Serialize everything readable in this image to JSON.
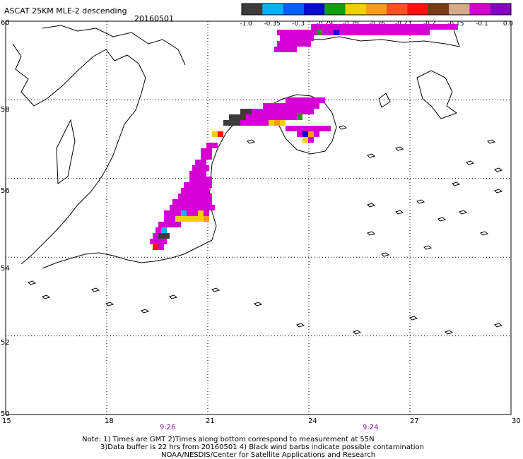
{
  "header": {
    "title": "ASCAT 25KM MLE-2 descending",
    "date": "20160501"
  },
  "colorbar": {
    "colors": [
      "#3c3c3c",
      "#00b2ff",
      "#0060ff",
      "#0a0ad0",
      "#13a010",
      "#f0d000",
      "#ff9a1a",
      "#ff5020",
      "#ff1010",
      "#7a3a18",
      "#d2aa8c",
      "#d400d4",
      "#8800c8"
    ],
    "labels": [
      "-1.0",
      "-0.35",
      "-0.3",
      "-0.29",
      "-0.28",
      "-0.26",
      "-0.23",
      "-0.2",
      "-0.15",
      "-0.1",
      "0.0"
    ]
  },
  "axes": {
    "x_ticks": [
      "15",
      "18",
      "21",
      "24",
      "27",
      "30"
    ],
    "y_ticks": [
      "60",
      "58",
      "56",
      "54",
      "52",
      "50"
    ],
    "x_range": [
      15,
      30
    ],
    "y_range": [
      50,
      60
    ],
    "y_ticks_shown": [
      "60",
      "58",
      "56",
      "54",
      "52",
      "50"
    ]
  },
  "overpass_times": [
    {
      "label": "9:26",
      "lon": 19.5
    },
    {
      "label": "9:24",
      "lon": 25.5
    }
  ],
  "notes": {
    "line1": "Note: 1) Times are GMT 2)Times along bottom correspond to measurement at 55N",
    "line2": "3)Data buffer is 22 hrs from 20160501 4) Black wind barbs indicate possible contamination",
    "line3": "NOAA/NESDIS/Center for Satellite Applications and Research"
  },
  "map_data": {
    "pixel_colors": {
      "K": "#3c3c3c",
      "C": "#00b2ff",
      "B": "#0060ff",
      "N": "#0a0ad0",
      "G": "#13a010",
      "Y": "#f0d000",
      "O": "#ff9a1a",
      "R": "#ff1010",
      "P": "#d400d4",
      "V": "#8800c8"
    }
  }
}
